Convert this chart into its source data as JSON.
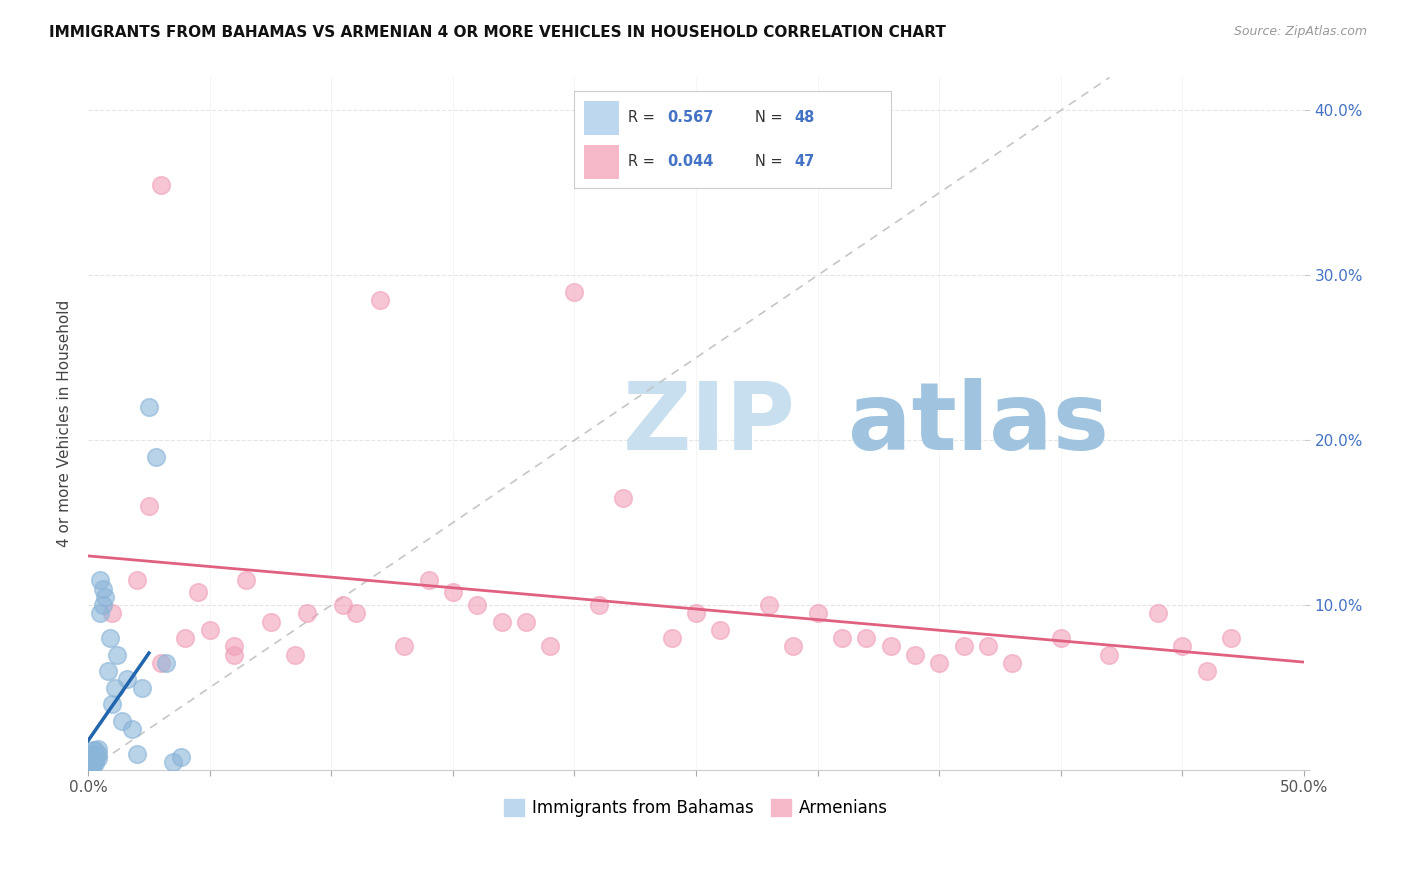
{
  "title": "IMMIGRANTS FROM BAHAMAS VS ARMENIAN 4 OR MORE VEHICLES IN HOUSEHOLD CORRELATION CHART",
  "source": "Source: ZipAtlas.com",
  "ylabel": "4 or more Vehicles in Household",
  "r_blue": 0.567,
  "n_blue": 48,
  "r_pink": 0.044,
  "n_pink": 47,
  "xlim": [
    0.0,
    0.5
  ],
  "ylim": [
    0.0,
    0.42
  ],
  "blue_circle_color": "#8ab4d8",
  "pink_circle_color": "#f0a0b8",
  "blue_line_color": "#2166ac",
  "pink_line_color": "#e06080",
  "dashed_color": "#c0c0c0",
  "right_tick_color": "#4472c4",
  "watermark_zip": "#c5daf0",
  "watermark_atlas": "#a8c8e8",
  "legend_blue_fill": "#bdd7ee",
  "legend_pink_fill": "#f4b8c8",
  "legend_text_color": "#333333",
  "legend_val_color": "#4472c4",
  "legend_blue_label": "Immigrants from Bahamas",
  "legend_pink_label": "Armenians",
  "background": "#ffffff",
  "grid_color": "#e5e5e5",
  "blue_x": [
    0.0005,
    0.0005,
    0.0005,
    0.0008,
    0.0008,
    0.001,
    0.001,
    0.001,
    0.001,
    0.0012,
    0.0012,
    0.0015,
    0.0015,
    0.0015,
    0.002,
    0.002,
    0.002,
    0.002,
    0.002,
    0.0025,
    0.0025,
    0.003,
    0.003,
    0.003,
    0.003,
    0.004,
    0.004,
    0.004,
    0.005,
    0.005,
    0.006,
    0.006,
    0.007,
    0.008,
    0.009,
    0.01,
    0.011,
    0.012,
    0.014,
    0.016,
    0.018,
    0.02,
    0.022,
    0.025,
    0.028,
    0.032,
    0.035,
    0.038
  ],
  "blue_y": [
    0.002,
    0.004,
    0.006,
    0.003,
    0.005,
    0.002,
    0.004,
    0.006,
    0.008,
    0.003,
    0.007,
    0.004,
    0.006,
    0.009,
    0.003,
    0.005,
    0.007,
    0.01,
    0.012,
    0.005,
    0.008,
    0.004,
    0.006,
    0.009,
    0.012,
    0.007,
    0.01,
    0.013,
    0.095,
    0.115,
    0.1,
    0.11,
    0.105,
    0.06,
    0.08,
    0.04,
    0.05,
    0.07,
    0.03,
    0.055,
    0.025,
    0.01,
    0.05,
    0.22,
    0.19,
    0.065,
    0.005,
    0.008
  ],
  "pink_x": [
    0.01,
    0.02,
    0.03,
    0.04,
    0.05,
    0.06,
    0.075,
    0.09,
    0.105,
    0.12,
    0.14,
    0.16,
    0.18,
    0.2,
    0.22,
    0.24,
    0.26,
    0.28,
    0.3,
    0.32,
    0.34,
    0.36,
    0.38,
    0.4,
    0.42,
    0.44,
    0.46,
    0.025,
    0.045,
    0.065,
    0.085,
    0.11,
    0.13,
    0.15,
    0.17,
    0.19,
    0.21,
    0.25,
    0.29,
    0.31,
    0.33,
    0.35,
    0.37,
    0.45,
    0.47,
    0.03,
    0.06
  ],
  "pink_y": [
    0.095,
    0.115,
    0.355,
    0.08,
    0.085,
    0.075,
    0.09,
    0.095,
    0.1,
    0.285,
    0.115,
    0.1,
    0.09,
    0.29,
    0.165,
    0.08,
    0.085,
    0.1,
    0.095,
    0.08,
    0.07,
    0.075,
    0.065,
    0.08,
    0.07,
    0.095,
    0.06,
    0.16,
    0.108,
    0.115,
    0.07,
    0.095,
    0.075,
    0.108,
    0.09,
    0.075,
    0.1,
    0.095,
    0.075,
    0.08,
    0.075,
    0.065,
    0.075,
    0.075,
    0.08,
    0.065,
    0.07
  ]
}
